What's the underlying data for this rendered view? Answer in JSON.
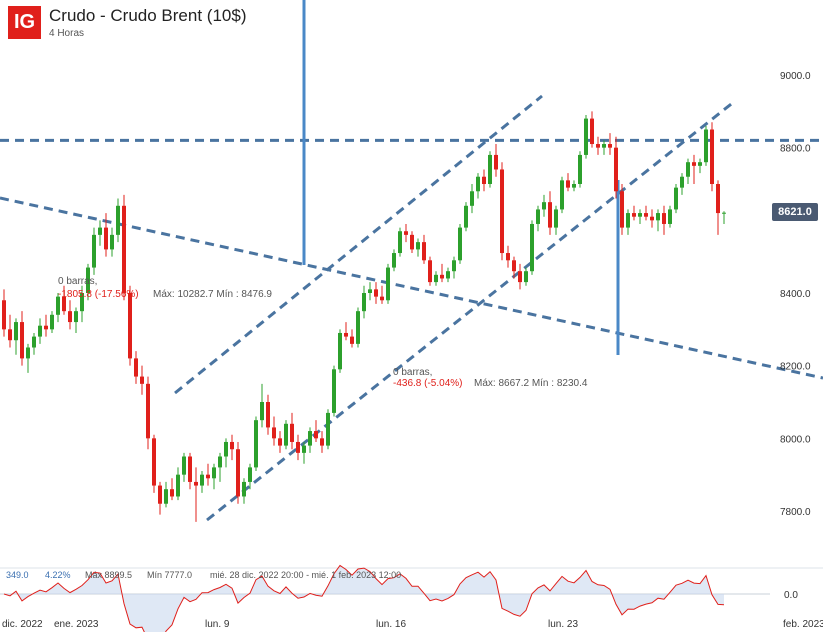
{
  "header": {
    "logo": "IG",
    "title": "Crudo - Crudo Brent (10$)",
    "timeframe": "4 Horas"
  },
  "price_tag": "8621.0",
  "measures": [
    {
      "bars": "0 barras,",
      "change": "-1805.8 (-17.56%)",
      "range": "Máx: 10282.7 Mín : 8476.9"
    },
    {
      "bars": "0 barras,",
      "change": "-436.8 (-5.04%)",
      "range": "Máx: 8667.2 Mín : 8230.4"
    }
  ],
  "stats_bar": {
    "value": "349.0",
    "percent": "4.22%",
    "max": "Máx 8899.5",
    "min": "Mín 7777.0",
    "period": "mié. 28 dic. 2022 20:00 - mié. 1 feb. 2023 12:00"
  },
  "osc_label": "0.0",
  "colors": {
    "up": "#2ca02c",
    "down": "#e0201b",
    "trend": "#4a74a0",
    "vline": "#4a88c7",
    "accent": "#e0201b"
  },
  "chart_data": {
    "type": "candlestick",
    "y_ticks": [
      "9000.0",
      "8800.0",
      "8400.0",
      "8200.0",
      "8000.0",
      "7800.0"
    ],
    "x_ticks": [
      "dic. 2022",
      "ene. 2023",
      "lun. 9",
      "lun. 16",
      "lun. 23",
      "feb. 2023"
    ],
    "ylim": [
      7630,
      9200
    ],
    "candles": [
      [
        8380,
        8410,
        8280,
        8300
      ],
      [
        8300,
        8340,
        8250,
        8270
      ],
      [
        8270,
        8330,
        8230,
        8320
      ],
      [
        8320,
        8350,
        8200,
        8220
      ],
      [
        8220,
        8260,
        8180,
        8250
      ],
      [
        8250,
        8290,
        8230,
        8280
      ],
      [
        8280,
        8330,
        8260,
        8310
      ],
      [
        8310,
        8340,
        8280,
        8300
      ],
      [
        8300,
        8350,
        8290,
        8340
      ],
      [
        8340,
        8400,
        8320,
        8390
      ],
      [
        8390,
        8420,
        8340,
        8350
      ],
      [
        8350,
        8380,
        8300,
        8320
      ],
      [
        8320,
        8360,
        8290,
        8350
      ],
      [
        8350,
        8420,
        8320,
        8400
      ],
      [
        8400,
        8480,
        8380,
        8470
      ],
      [
        8470,
        8580,
        8450,
        8560
      ],
      [
        8560,
        8600,
        8530,
        8580
      ],
      [
        8580,
        8620,
        8500,
        8520
      ],
      [
        8520,
        8580,
        8500,
        8560
      ],
      [
        8560,
        8660,
        8540,
        8640
      ],
      [
        8640,
        8670,
        8380,
        8400
      ],
      [
        8400,
        8420,
        8200,
        8220
      ],
      [
        8220,
        8240,
        8150,
        8170
      ],
      [
        8170,
        8200,
        8120,
        8150
      ],
      [
        8150,
        8170,
        7970,
        8000
      ],
      [
        8000,
        8010,
        7850,
        7870
      ],
      [
        7870,
        7880,
        7790,
        7820
      ],
      [
        7820,
        7880,
        7810,
        7860
      ],
      [
        7860,
        7890,
        7830,
        7840
      ],
      [
        7840,
        7920,
        7830,
        7900
      ],
      [
        7900,
        7960,
        7880,
        7950
      ],
      [
        7950,
        7960,
        7860,
        7880
      ],
      [
        7880,
        7920,
        7770,
        7870
      ],
      [
        7870,
        7910,
        7850,
        7900
      ],
      [
        7900,
        7930,
        7870,
        7890
      ],
      [
        7890,
        7930,
        7860,
        7920
      ],
      [
        7920,
        7960,
        7880,
        7950
      ],
      [
        7950,
        8000,
        7920,
        7990
      ],
      [
        7990,
        8010,
        7940,
        7970
      ],
      [
        7970,
        7990,
        7820,
        7840
      ],
      [
        7840,
        7890,
        7820,
        7880
      ],
      [
        7880,
        7930,
        7860,
        7920
      ],
      [
        7920,
        8060,
        7910,
        8050
      ],
      [
        8050,
        8150,
        8030,
        8100
      ],
      [
        8100,
        8120,
        8010,
        8030
      ],
      [
        8030,
        8060,
        7980,
        8000
      ],
      [
        8000,
        8020,
        7960,
        7980
      ],
      [
        7980,
        8050,
        7970,
        8040
      ],
      [
        8040,
        8070,
        7970,
        7990
      ],
      [
        7990,
        8010,
        7940,
        7960
      ],
      [
        7960,
        7990,
        7930,
        7980
      ],
      [
        7980,
        8030,
        7960,
        8020
      ],
      [
        8020,
        8050,
        7990,
        8000
      ],
      [
        8000,
        8020,
        7960,
        7980
      ],
      [
        7980,
        8080,
        7970,
        8070
      ],
      [
        8070,
        8200,
        8060,
        8190
      ],
      [
        8190,
        8300,
        8180,
        8290
      ],
      [
        8290,
        8320,
        8270,
        8280
      ],
      [
        8280,
        8300,
        8250,
        8260
      ],
      [
        8260,
        8360,
        8250,
        8350
      ],
      [
        8350,
        8420,
        8330,
        8400
      ],
      [
        8400,
        8430,
        8380,
        8410
      ],
      [
        8410,
        8430,
        8370,
        8390
      ],
      [
        8390,
        8420,
        8370,
        8380
      ],
      [
        8380,
        8480,
        8370,
        8470
      ],
      [
        8470,
        8520,
        8460,
        8510
      ],
      [
        8510,
        8580,
        8500,
        8570
      ],
      [
        8570,
        8590,
        8540,
        8560
      ],
      [
        8560,
        8570,
        8510,
        8520
      ],
      [
        8520,
        8550,
        8500,
        8540
      ],
      [
        8540,
        8560,
        8480,
        8490
      ],
      [
        8490,
        8500,
        8420,
        8430
      ],
      [
        8430,
        8460,
        8420,
        8450
      ],
      [
        8450,
        8480,
        8430,
        8440
      ],
      [
        8440,
        8470,
        8430,
        8460
      ],
      [
        8460,
        8500,
        8440,
        8490
      ],
      [
        8490,
        8590,
        8480,
        8580
      ],
      [
        8580,
        8650,
        8570,
        8640
      ],
      [
        8640,
        8700,
        8620,
        8680
      ],
      [
        8680,
        8730,
        8660,
        8720
      ],
      [
        8720,
        8740,
        8680,
        8700
      ],
      [
        8700,
        8790,
        8690,
        8780
      ],
      [
        8780,
        8810,
        8720,
        8740
      ],
      [
        8740,
        8760,
        8490,
        8510
      ],
      [
        8510,
        8530,
        8470,
        8490
      ],
      [
        8490,
        8500,
        8440,
        8460
      ],
      [
        8460,
        8480,
        8410,
        8430
      ],
      [
        8430,
        8470,
        8420,
        8460
      ],
      [
        8460,
        8600,
        8450,
        8590
      ],
      [
        8590,
        8640,
        8570,
        8630
      ],
      [
        8630,
        8670,
        8610,
        8650
      ],
      [
        8650,
        8680,
        8560,
        8580
      ],
      [
        8580,
        8640,
        8560,
        8630
      ],
      [
        8630,
        8720,
        8620,
        8710
      ],
      [
        8710,
        8730,
        8680,
        8690
      ],
      [
        8690,
        8710,
        8680,
        8700
      ],
      [
        8700,
        8790,
        8690,
        8780
      ],
      [
        8780,
        8890,
        8770,
        8880
      ],
      [
        8880,
        8900,
        8800,
        8810
      ],
      [
        8810,
        8830,
        8780,
        8800
      ],
      [
        8800,
        8820,
        8780,
        8810
      ],
      [
        8810,
        8840,
        8780,
        8800
      ],
      [
        8800,
        8830,
        8660,
        8680
      ],
      [
        8680,
        8700,
        8560,
        8580
      ],
      [
        8580,
        8630,
        8560,
        8620
      ],
      [
        8620,
        8640,
        8600,
        8610
      ],
      [
        8610,
        8630,
        8590,
        8620
      ],
      [
        8620,
        8640,
        8600,
        8610
      ],
      [
        8610,
        8630,
        8580,
        8600
      ],
      [
        8600,
        8630,
        8570,
        8620
      ],
      [
        8620,
        8640,
        8560,
        8590
      ],
      [
        8590,
        8640,
        8580,
        8630
      ],
      [
        8630,
        8700,
        8620,
        8690
      ],
      [
        8690,
        8730,
        8670,
        8720
      ],
      [
        8720,
        8770,
        8700,
        8760
      ],
      [
        8760,
        8780,
        8700,
        8750
      ],
      [
        8750,
        8770,
        8730,
        8760
      ],
      [
        8760,
        8860,
        8750,
        8850
      ],
      [
        8850,
        8870,
        8680,
        8700
      ],
      [
        8700,
        8710,
        8560,
        8620
      ],
      [
        8620,
        8625,
        8590,
        8621
      ]
    ]
  }
}
